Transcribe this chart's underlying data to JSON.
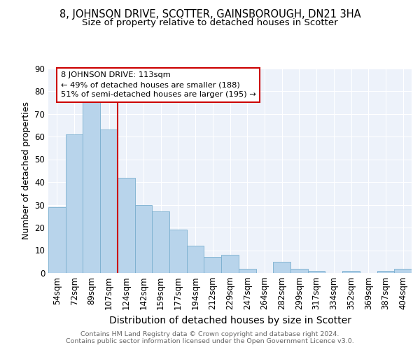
{
  "title": "8, JOHNSON DRIVE, SCOTTER, GAINSBOROUGH, DN21 3HA",
  "subtitle": "Size of property relative to detached houses in Scotter",
  "xlabel": "Distribution of detached houses by size in Scotter",
  "ylabel": "Number of detached properties",
  "categories": [
    "54sqm",
    "72sqm",
    "89sqm",
    "107sqm",
    "124sqm",
    "142sqm",
    "159sqm",
    "177sqm",
    "194sqm",
    "212sqm",
    "229sqm",
    "247sqm",
    "264sqm",
    "282sqm",
    "299sqm",
    "317sqm",
    "334sqm",
    "352sqm",
    "369sqm",
    "387sqm",
    "404sqm"
  ],
  "values": [
    29,
    61,
    76,
    63,
    42,
    30,
    27,
    19,
    12,
    7,
    8,
    2,
    0,
    5,
    2,
    1,
    0,
    1,
    0,
    1,
    2
  ],
  "bar_color": "#b8d4eb",
  "bar_edge_color": "#7aafcf",
  "vline_color": "#cc0000",
  "annotation_text": "8 JOHNSON DRIVE: 113sqm\n← 49% of detached houses are smaller (188)\n51% of semi-detached houses are larger (195) →",
  "annotation_box_color": "#ffffff",
  "annotation_box_edge_color": "#cc0000",
  "ylim": [
    0,
    90
  ],
  "yticks": [
    0,
    10,
    20,
    30,
    40,
    50,
    60,
    70,
    80,
    90
  ],
  "footer_text": "Contains HM Land Registry data © Crown copyright and database right 2024.\nContains public sector information licensed under the Open Government Licence v3.0.",
  "bg_color": "#edf2fa",
  "title_fontsize": 10.5,
  "subtitle_fontsize": 9.5,
  "xlabel_fontsize": 10,
  "ylabel_fontsize": 9
}
